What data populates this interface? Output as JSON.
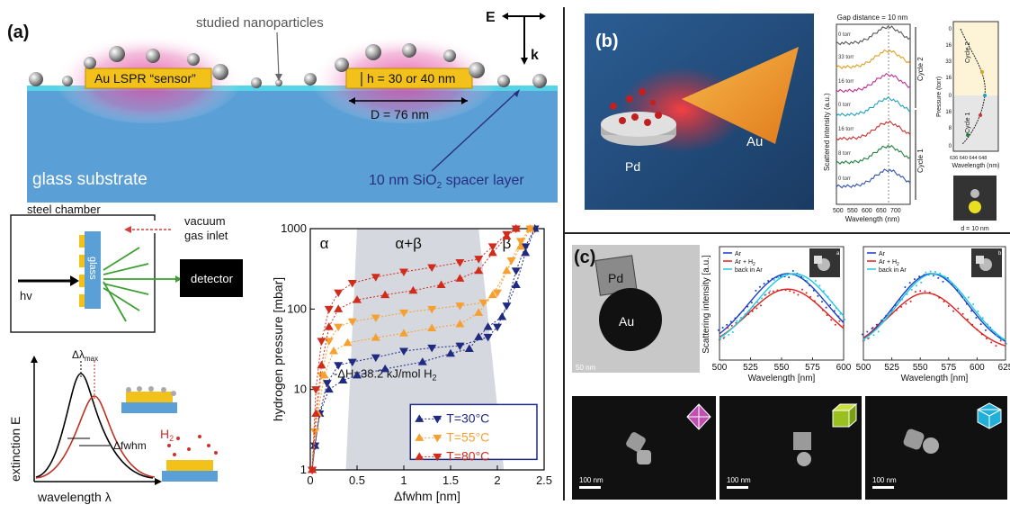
{
  "panel_a": {
    "label": "(a)",
    "nanoparticles_label": "studied nanoparticles",
    "lspr_label": "Au LSPR “sensor”",
    "h_label": "h = 30 or 40 nm",
    "d_label": "D = 76 nm",
    "e_label": "E",
    "k_label": "k",
    "substrate_label": "glass substrate",
    "spacer_label": "10 nm SiO",
    "spacer_sub": "2",
    "spacer_suffix": " spacer layer",
    "chamber_label": "steel chamber",
    "vacuum_label": "vacuum",
    "gas_label": "gas inlet",
    "glass_label": "glass",
    "hv_label": "hv",
    "detector_label": "detector",
    "extinction_label": "extinction E",
    "wavelength_label": "wavelength λ",
    "dlmax_label": "Δλ",
    "dlmax_sub": "max",
    "dfwhm_label": "Δfwhm",
    "h2_label": "H",
    "h2_sub": "2"
  },
  "chart_data": {
    "type": "scatter",
    "xlabel": "Δfwhm [nm]",
    "ylabel": "hydrogen pressure [mbar]",
    "xlim": [
      0,
      2.5
    ],
    "ylim": [
      1,
      1000
    ],
    "yscale": "log",
    "xticks": [
      "0",
      "0.5",
      "1",
      "1.5",
      "2",
      "2.5"
    ],
    "yticks": [
      "1",
      "10",
      "100",
      "1000"
    ],
    "phase_labels": [
      "α",
      "α+β",
      "β"
    ],
    "annotation": "-ΔH=38.2 kJ/mol H",
    "annotation_sub": "2",
    "legend_position": "lower-right",
    "series": [
      {
        "name": "T=30°C",
        "color": "#1f2a80",
        "absorption": [
          [
            0.02,
            1
          ],
          [
            0.05,
            2
          ],
          [
            0.1,
            5
          ],
          [
            0.2,
            10
          ],
          [
            0.35,
            13
          ],
          [
            0.5,
            15
          ],
          [
            0.8,
            18
          ],
          [
            1.2,
            22
          ],
          [
            1.5,
            28
          ],
          [
            1.7,
            32
          ],
          [
            1.8,
            45
          ],
          [
            1.9,
            60
          ],
          [
            2.05,
            80
          ],
          [
            2.2,
            200
          ],
          [
            2.3,
            500
          ],
          [
            2.4,
            1000
          ]
        ],
        "desorption": [
          [
            2.4,
            1000
          ],
          [
            2.3,
            600
          ],
          [
            2.2,
            300
          ],
          [
            2.1,
            110
          ],
          [
            2.0,
            60
          ],
          [
            1.9,
            45
          ],
          [
            1.6,
            35
          ],
          [
            1.3,
            33
          ],
          [
            1.0,
            30
          ],
          [
            0.7,
            25
          ],
          [
            0.45,
            22
          ],
          [
            0.3,
            20
          ],
          [
            0.18,
            12
          ],
          [
            0.1,
            5
          ],
          [
            0.05,
            2
          ],
          [
            0.02,
            1
          ]
        ]
      },
      {
        "name": "T=55°C",
        "color": "#f5a030",
        "absorption": [
          [
            0.02,
            1
          ],
          [
            0.08,
            5
          ],
          [
            0.15,
            15
          ],
          [
            0.25,
            30
          ],
          [
            0.4,
            38
          ],
          [
            0.7,
            44
          ],
          [
            1.0,
            50
          ],
          [
            1.3,
            58
          ],
          [
            1.6,
            65
          ],
          [
            1.8,
            90
          ],
          [
            1.95,
            150
          ],
          [
            2.1,
            300
          ],
          [
            2.25,
            600
          ],
          [
            2.35,
            1000
          ]
        ],
        "desorption": [
          [
            2.35,
            1000
          ],
          [
            2.25,
            700
          ],
          [
            2.15,
            400
          ],
          [
            2.0,
            160
          ],
          [
            1.85,
            120
          ],
          [
            1.6,
            110
          ],
          [
            1.3,
            100
          ],
          [
            1.0,
            90
          ],
          [
            0.7,
            78
          ],
          [
            0.45,
            70
          ],
          [
            0.3,
            60
          ],
          [
            0.2,
            40
          ],
          [
            0.12,
            15
          ],
          [
            0.05,
            3
          ],
          [
            0.02,
            1
          ]
        ]
      },
      {
        "name": "T=80°C",
        "color": "#d02c1c",
        "absorption": [
          [
            0.02,
            1
          ],
          [
            0.06,
            5
          ],
          [
            0.12,
            20
          ],
          [
            0.2,
            60
          ],
          [
            0.3,
            100
          ],
          [
            0.5,
            130
          ],
          [
            0.8,
            150
          ],
          [
            1.1,
            170
          ],
          [
            1.4,
            200
          ],
          [
            1.6,
            240
          ],
          [
            1.8,
            300
          ],
          [
            1.95,
            500
          ],
          [
            2.1,
            800
          ],
          [
            2.2,
            1000
          ]
        ],
        "desorption": [
          [
            2.2,
            1000
          ],
          [
            2.1,
            850
          ],
          [
            1.95,
            600
          ],
          [
            1.8,
            420
          ],
          [
            1.6,
            380
          ],
          [
            1.3,
            330
          ],
          [
            1.0,
            290
          ],
          [
            0.7,
            250
          ],
          [
            0.45,
            210
          ],
          [
            0.3,
            160
          ],
          [
            0.2,
            100
          ],
          [
            0.12,
            40
          ],
          [
            0.06,
            10
          ],
          [
            0.02,
            1
          ]
        ]
      }
    ]
  },
  "panel_b": {
    "label": "(b)",
    "pd_label": "Pd",
    "au_label": "Au",
    "gap_label": "Gap distance = 10 nm",
    "ylabel": "Scattered intensity (a.u.)",
    "xlabel": "Wavelength (nm)",
    "xticks": [
      "500",
      "550",
      "600",
      "650",
      "700"
    ],
    "trace_labels": [
      "0 torr",
      "33 torr",
      "16 torr",
      "0 torr",
      "16 torr",
      "8 torr",
      "0 torr"
    ],
    "trace_colors": [
      "#555555",
      "#e0a020",
      "#c03090",
      "#20a0c0",
      "#d03030",
      "#208040",
      "#3050b0"
    ],
    "cycle_labels": [
      "Cycle 2",
      "Cycle 1"
    ],
    "side_ylabel": "Pressure (torr)",
    "side_yticks": [
      "0",
      "16",
      "33",
      "16",
      "0",
      "16",
      "8",
      "0"
    ],
    "side_xlabel": "Wavelength (nm)",
    "side_xticks": "636 640 644 648",
    "d_label": "d = 10 nm"
  },
  "panel_c": {
    "label": "(c)",
    "pd_label": "Pd",
    "au_label": "Au",
    "scalebar_label": "50 nm",
    "ylabel": "Scattering intensity [a.u.]",
    "xlabel": "Wavelength [nm]",
    "legend": [
      "Ar",
      "Ar + H",
      "back in Ar"
    ],
    "legend_sub": "2",
    "inset_tags": [
      "a",
      "b"
    ],
    "xticks_left": [
      "500",
      "525",
      "550",
      "575",
      "600"
    ],
    "xticks_right": [
      "500",
      "525",
      "550",
      "575",
      "600",
      "625"
    ],
    "em_scalebar": "100 nm"
  }
}
